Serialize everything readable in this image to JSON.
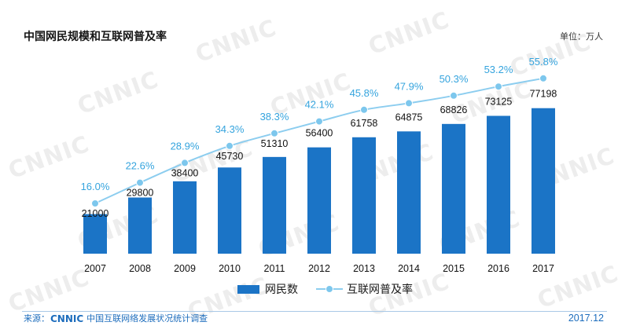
{
  "chart_data": {
    "type": "bar",
    "title": "中国网民规模和互联网普及率",
    "unit": "单位：万人",
    "categories": [
      "2007",
      "2008",
      "2009",
      "2010",
      "2011",
      "2012",
      "2013",
      "2014",
      "2015",
      "2016",
      "2017"
    ],
    "series": [
      {
        "name": "网民数",
        "type": "bar",
        "values": [
          21000,
          29800,
          38400,
          45730,
          51310,
          56400,
          61758,
          64875,
          68826,
          73125,
          77198
        ]
      },
      {
        "name": "互联网普及率",
        "type": "line",
        "values": [
          16.0,
          22.6,
          28.9,
          34.3,
          38.3,
          42.1,
          45.8,
          47.9,
          50.3,
          53.2,
          55.8
        ],
        "data_labels": [
          "16.0%",
          "22.6%",
          "28.9%",
          "34.3%",
          "38.3%",
          "42.1%",
          "45.8%",
          "47.9%",
          "50.3%",
          "53.2%",
          "55.8%"
        ]
      }
    ],
    "ylim": [
      0,
      100000
    ],
    "y2lim": [
      0,
      60
    ],
    "grid": false,
    "legend": "bottom-center"
  },
  "watermark": "CNNIC",
  "footer": {
    "source_label": "来源：",
    "logo": "CNNIC",
    "survey": "中国互联网络发展状况统计调查",
    "date": "2017.12"
  },
  "colors": {
    "bar": "#1b74c6",
    "line": "#8ccdef",
    "marker": "#7dc7ed",
    "rate_label": "#35a4de",
    "footer": "#1d6dbd",
    "rule": "#a9c9e7",
    "watermark": "#ededed"
  }
}
